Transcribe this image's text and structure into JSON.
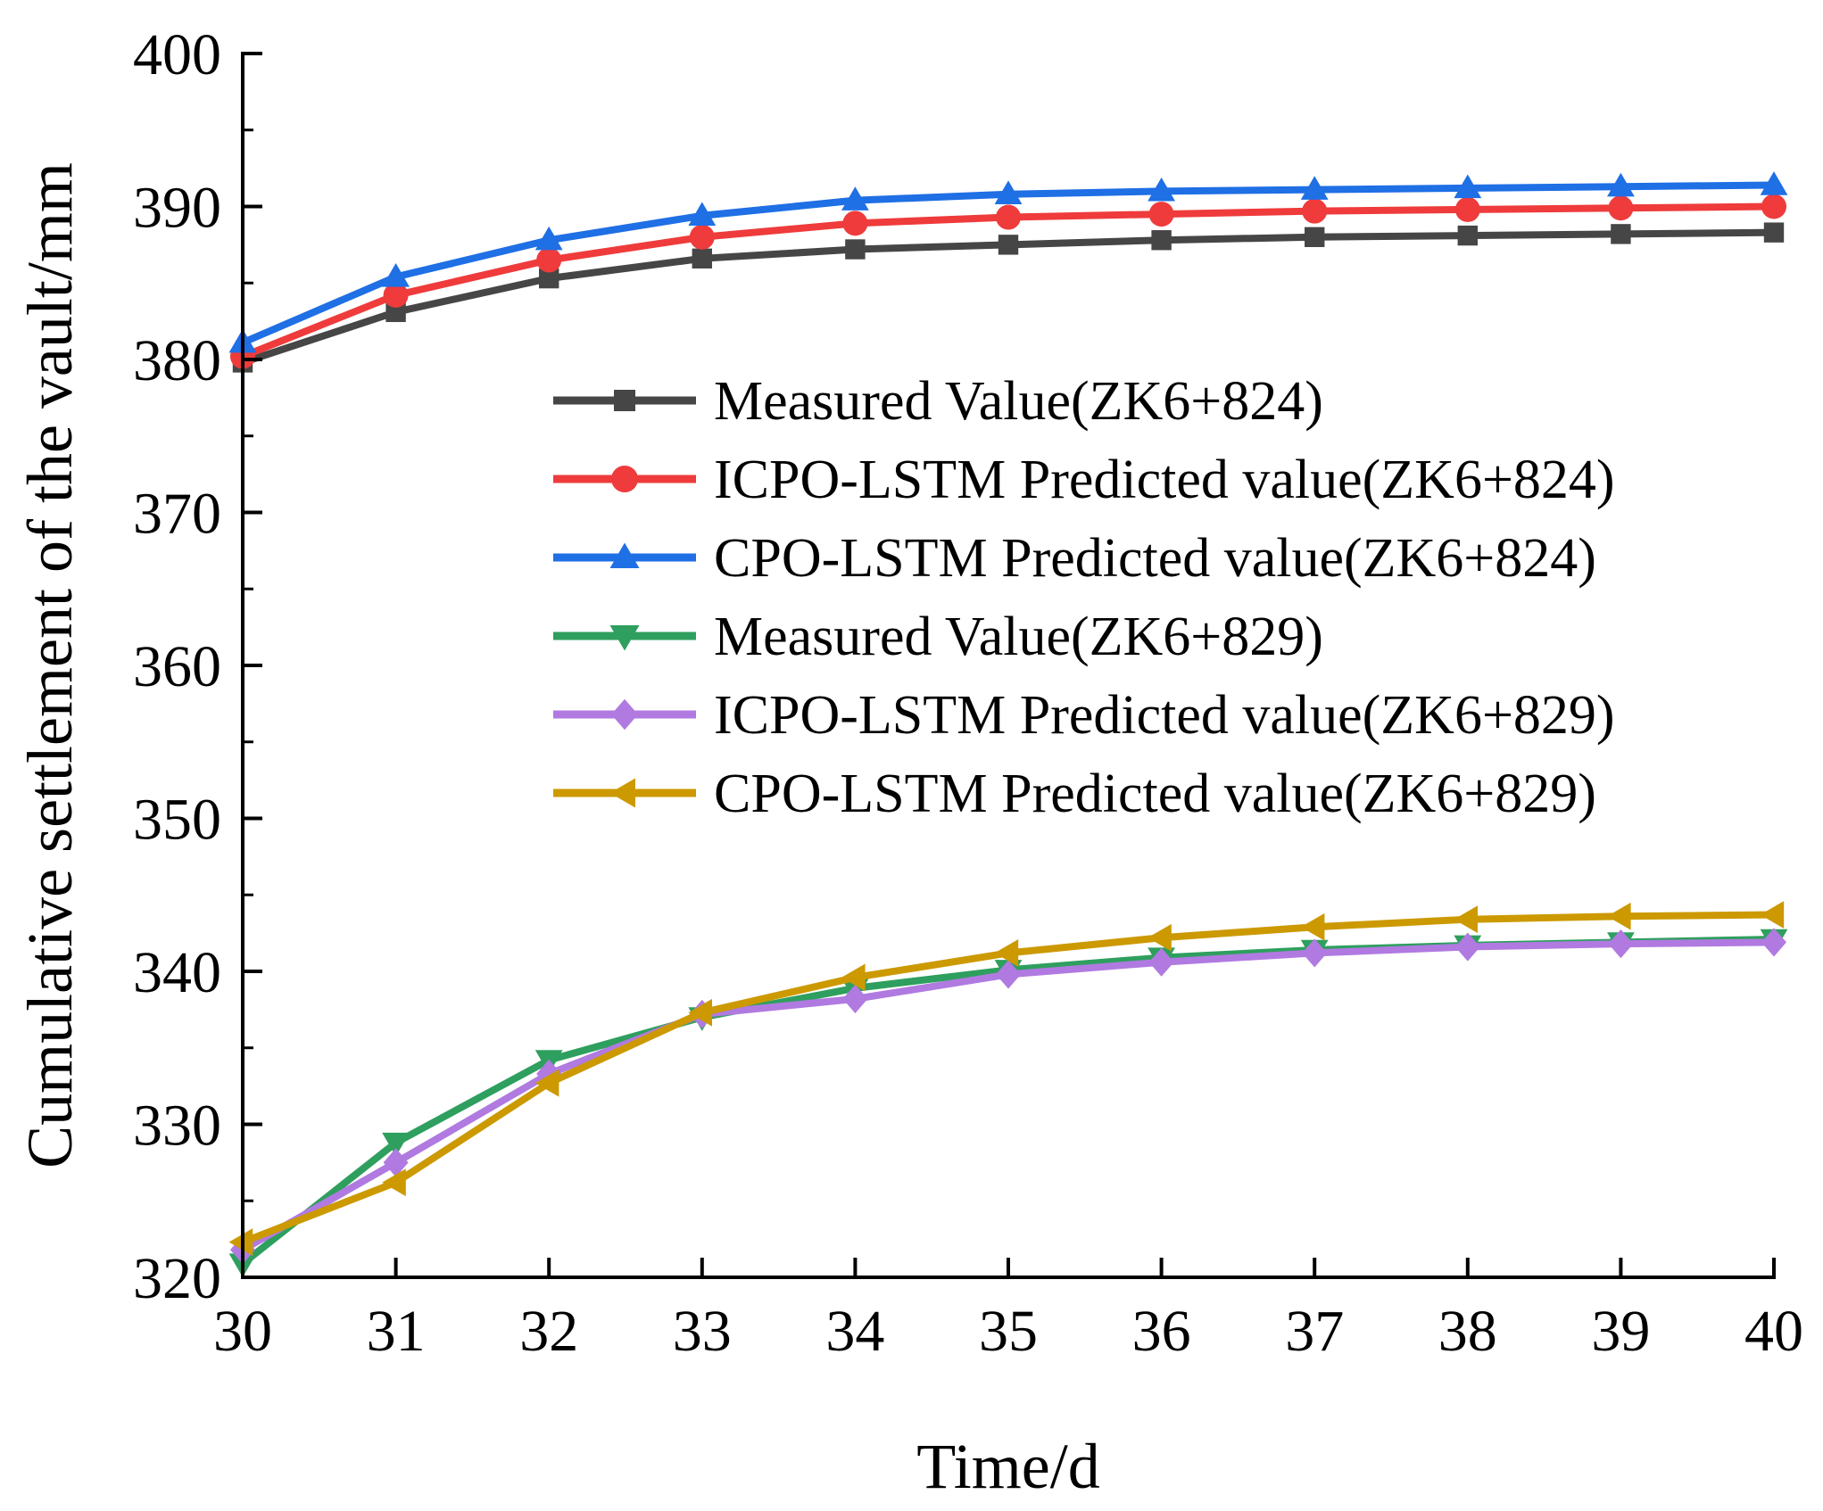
{
  "chart_data": {
    "type": "line",
    "title": "",
    "xlabel": "Time/d",
    "ylabel": "Cumulative settlement of the vault/mm",
    "xlim": [
      30,
      40
    ],
    "ylim": [
      320,
      400
    ],
    "xticks": [
      30,
      31,
      32,
      33,
      34,
      35,
      36,
      37,
      38,
      39,
      40
    ],
    "yticks": [
      320,
      330,
      340,
      350,
      360,
      370,
      380,
      390,
      400
    ],
    "grid": false,
    "legend_position": "center-right",
    "x": [
      30,
      31,
      32,
      33,
      34,
      35,
      36,
      37,
      38,
      39,
      40
    ],
    "series": [
      {
        "name": "Measured Value(ZK6+824)",
        "color": "#464646",
        "marker": "square",
        "values": [
          379.8,
          383.1,
          385.3,
          386.6,
          387.2,
          387.5,
          387.8,
          388.0,
          388.1,
          388.2,
          388.3
        ]
      },
      {
        "name": "ICPO-LSTM Predicted value(ZK6+824)",
        "color": "#ef3b3b",
        "marker": "circle",
        "values": [
          380.2,
          384.2,
          386.5,
          388.0,
          388.9,
          389.3,
          389.5,
          389.7,
          389.8,
          389.9,
          390.0
        ]
      },
      {
        "name": "CPO-LSTM Predicted value(ZK6+824)",
        "color": "#1f6fe5",
        "marker": "triangle-up",
        "values": [
          381.1,
          385.4,
          387.8,
          389.4,
          390.4,
          390.8,
          391.0,
          391.1,
          391.2,
          391.3,
          391.4
        ]
      },
      {
        "name": "Measured Value(ZK6+829)",
        "color": "#2e9f5e",
        "marker": "triangle-down",
        "values": [
          320.9,
          328.8,
          334.2,
          337.0,
          338.9,
          340.1,
          340.9,
          341.4,
          341.7,
          341.9,
          342.1
        ]
      },
      {
        "name": "ICPO-LSTM Predicted value(ZK6+829)",
        "color": "#b07ae0",
        "marker": "diamond",
        "values": [
          321.8,
          327.5,
          333.3,
          337.2,
          338.2,
          339.8,
          340.6,
          341.2,
          341.6,
          341.8,
          341.9
        ]
      },
      {
        "name": "CPO-LSTM Predicted value(ZK6+829)",
        "color": "#cc9900",
        "marker": "triangle-left",
        "values": [
          322.3,
          326.2,
          332.7,
          337.3,
          339.6,
          341.2,
          342.2,
          342.9,
          343.4,
          343.6,
          343.7
        ]
      }
    ]
  }
}
